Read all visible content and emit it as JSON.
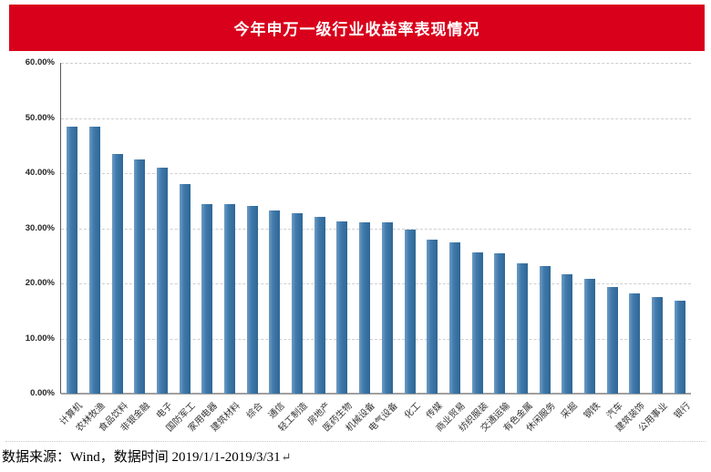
{
  "banner": {
    "title": "今年申万一级行业收益率表现情况",
    "background": "#d9001b",
    "text_color": "#ffffff"
  },
  "chart_data": {
    "type": "bar",
    "title": "今年申万一级行业收益率表现情况",
    "categories": [
      "计算机",
      "农林牧渔",
      "食品饮料",
      "非银金融",
      "电子",
      "国防军工",
      "家用电器",
      "建筑材料",
      "综合",
      "通信",
      "轻工制造",
      "房地产",
      "医药生物",
      "机械设备",
      "电气设备",
      "化工",
      "传媒",
      "商业贸易",
      "纺织服装",
      "交通运输",
      "有色金属",
      "休闲服务",
      "采掘",
      "钢铁",
      "汽车",
      "建筑装饰",
      "公用事业",
      "银行"
    ],
    "values": [
      48.4,
      48.5,
      43.5,
      42.4,
      41.0,
      38.0,
      34.4,
      34.3,
      34.0,
      33.2,
      32.7,
      32.0,
      31.3,
      31.1,
      31.0,
      29.7,
      27.9,
      27.5,
      25.6,
      25.4,
      23.7,
      23.2,
      21.6,
      20.8,
      19.4,
      18.2,
      17.6,
      16.8
    ],
    "unit": "%",
    "xlabel": "",
    "ylabel": "",
    "ylim": [
      0,
      60
    ],
    "ytick_step": 10,
    "ytick_labels_top_to_bottom": [
      "60.00%",
      "50.00%",
      "40.00%",
      "30.00%",
      "20.00%",
      "10.00%",
      "0.00%"
    ],
    "grid": true,
    "grid_style": "dashed",
    "legend": "none",
    "bar_color": "#4079ab"
  },
  "footer": {
    "source_text": "数据来源：Wind，数据时间 2019/1/1-2019/3/31",
    "return_mark": "↵"
  }
}
